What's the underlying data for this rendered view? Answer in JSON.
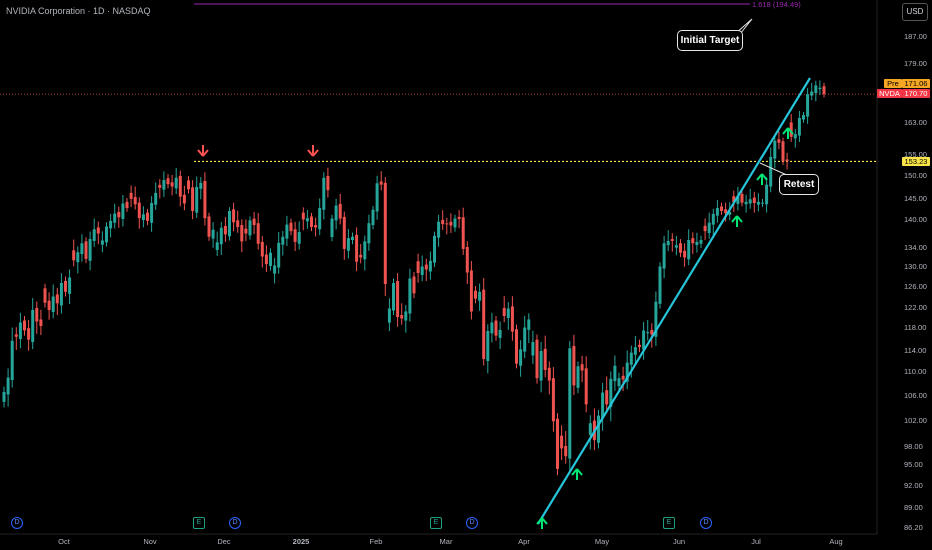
{
  "header": {
    "title": "NVIDIA Corporation · 1D · NASDAQ",
    "currency_button": "USD"
  },
  "fib": {
    "label": "1.618 (194.49)",
    "color": "#9c27b0"
  },
  "annotations": {
    "initial_target": "Initial Target",
    "retest": "Retest"
  },
  "price_tags": {
    "prev_label": "Pre",
    "prev_value": "171.06",
    "symbol": "NVDA",
    "last_value": "170.70",
    "support_value": "153.23"
  },
  "events": {
    "earnings": "E",
    "dividend": "D"
  },
  "colors": {
    "up": "#26a69a",
    "down": "#ef5350",
    "trend": "#26c6da",
    "arrow_up": "#00e676",
    "arrow_down": "#ff5252",
    "support": "#f9e547"
  },
  "chart_data": {
    "type": "candlestick",
    "title": "NVIDIA Corporation · 1D · NASDAQ",
    "y_axis_ticks": [
      "187.00",
      "179.00",
      "171.00",
      "163.00",
      "155.00",
      "150.00",
      "145.00",
      "140.00",
      "134.00",
      "130.00",
      "126.00",
      "122.00",
      "118.00",
      "114.00",
      "110.00",
      "106.00",
      "102.00",
      "98.00",
      "95.00",
      "92.00",
      "89.00",
      "86.20"
    ],
    "x_axis_ticks": [
      "Oct",
      "Nov",
      "Dec",
      "2025",
      "Feb",
      "Mar",
      "Apr",
      "May",
      "Jun",
      "Jul",
      "Aug"
    ],
    "ylim": [
      86.2,
      196
    ],
    "levels": {
      "fib_1618": 194.49,
      "support": 153.23,
      "last": 170.7,
      "pre": 171.06
    },
    "trendline": {
      "from": [
        "2025-04-07",
        86.62
      ],
      "to": [
        "2025-07-24",
        175.0
      ]
    },
    "series": [
      {
        "name": "NVDA",
        "close": [
          106.5,
          108.9,
          115.6,
          116.3,
          118.9,
          117.4,
          115.8,
          121.4,
          119.1,
          118.2,
          122.8,
          121.4,
          124.0,
          122.7,
          126.6,
          124.9,
          127.7,
          131.2,
          132.9,
          134.8,
          131.5,
          135.7,
          137.8,
          136.9,
          135.4,
          138.4,
          139.6,
          141.3,
          140.4,
          143.7,
          142.6,
          144.8,
          143.5,
          140.2,
          141.1,
          139.6,
          143.8,
          146.1,
          147.2,
          148.9,
          148.0,
          147.5,
          149.4,
          145.3,
          143.7,
          146.9,
          141.9,
          147.4,
          148.3,
          140.2,
          136.2,
          137.7,
          135.0,
          138.1,
          136.7,
          141.9,
          139.3,
          138.3,
          135.2,
          136.9,
          139.7,
          138.7,
          134.7,
          132.0,
          130.4,
          132.8,
          130.1,
          134.9,
          136.2,
          138.8,
          137.4,
          135.1,
          137.2,
          139.9,
          140.2,
          138.3,
          138.2,
          142.6,
          149.4,
          146.7,
          140.1,
          143.2,
          140.1,
          133.6,
          135.9,
          136.2,
          130.9,
          131.8,
          135.2,
          139.1,
          142.2,
          148.2,
          147.9,
          126.4,
          121.7,
          126.6,
          120.0,
          119.7,
          121.1,
          127.5,
          124.6,
          128.6,
          129.9,
          129.3,
          131.1,
          136.4,
          139.4,
          138.9,
          139.0,
          138.6,
          140.1,
          140.0,
          133.6,
          128.7,
          121.1,
          123.6,
          124.9,
          112.3,
          117.3,
          118.9,
          116.5,
          117.5,
          120.2,
          121.7,
          117.2,
          111.4,
          114.1,
          117.9,
          119.5,
          115.4,
          108.8,
          113.8,
          110.2,
          108.4,
          101.8,
          94.3,
          97.6,
          96.3,
          114.3,
          107.6,
          110.9,
          110.1,
          104.5,
          101.5,
          98.9,
          102.7,
          106.4,
          104.5,
          108.7,
          111.0,
          108.8,
          108.6,
          111.6,
          113.5,
          114.5,
          114.5,
          117.4,
          117.1,
          116.7,
          123.0,
          129.9,
          134.8,
          135.3,
          135.3,
          134.4,
          132.8,
          131.8,
          135.5,
          134.8,
          135.1,
          135.5,
          137.4,
          139.2,
          141.2,
          142.6,
          141.9,
          141.4,
          141.7,
          144.0,
          145.5,
          143.9,
          144.1,
          144.7,
          143.8,
          144.1,
          143.9,
          147.9,
          154.3,
          158.3,
          157.8,
          153.3,
          153.3,
          159.3,
          160.0,
          164.1,
          164.9,
          170.7,
          171.4,
          173.0,
          172.4,
          170.7
        ]
      }
    ]
  }
}
